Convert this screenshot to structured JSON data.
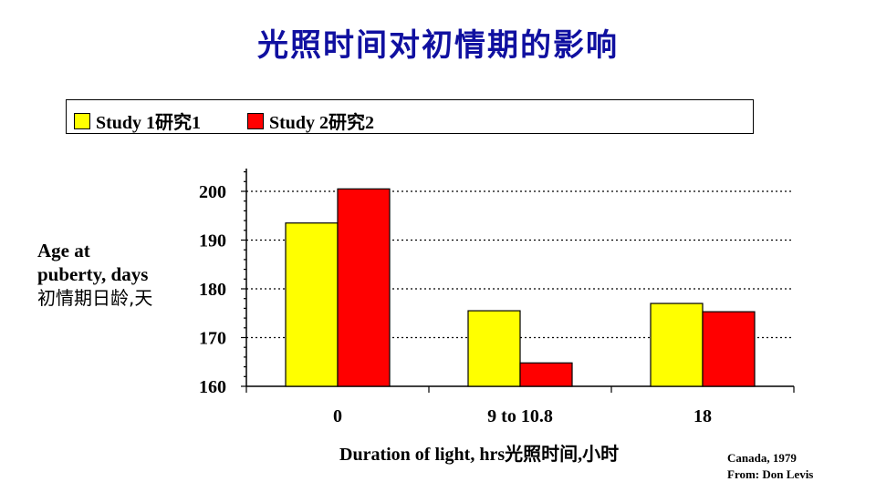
{
  "chart_data": {
    "type": "bar",
    "title": "光照时间对初情期的影响",
    "xlabel": "Duration of light, hrs光照时间,小时",
    "ylabel": [
      "Age at",
      "puberty, days",
      "初情期日龄,天"
    ],
    "categories": [
      "0",
      "9 to 10.8",
      "18"
    ],
    "series": [
      {
        "name": "Study 1研究1",
        "color": "#ffff00",
        "values": [
          193.5,
          175.5,
          177
        ]
      },
      {
        "name": "Study 2研究2",
        "color": "#ff0000",
        "values": [
          200.5,
          164.8,
          175.3
        ]
      }
    ],
    "ylim": [
      160,
      205
    ],
    "yticks": [
      160,
      170,
      180,
      190,
      200
    ],
    "grid": true,
    "legend": "top"
  },
  "credit": [
    "Canada, 1979",
    "From: Don Levis"
  ]
}
